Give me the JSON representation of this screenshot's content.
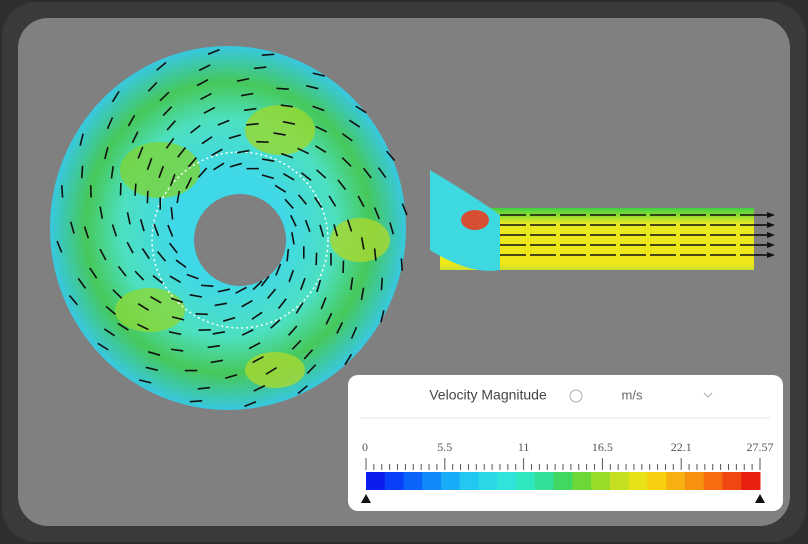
{
  "legend": {
    "title": "Velocity Magnitude",
    "unit": "m/s",
    "ticks": [
      "0",
      "5.5",
      "11",
      "16.5",
      "22.1",
      "27.57"
    ]
  }
}
